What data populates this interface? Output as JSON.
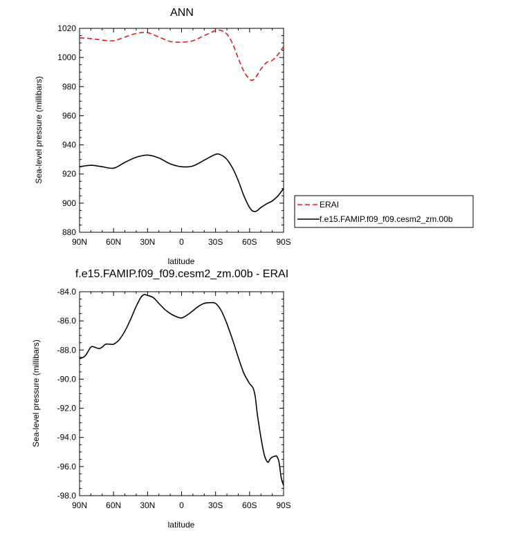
{
  "chart_data": [
    {
      "type": "line",
      "title": "ANN",
      "xlabel": "latitude",
      "ylabel": "Sea-level pressure (millibars)",
      "xlim": [
        90,
        -90
      ],
      "ylim": [
        880,
        1020
      ],
      "x_ticks": [
        90,
        60,
        30,
        0,
        -30,
        -60,
        -90
      ],
      "x_tick_labels": [
        "90N",
        "60N",
        "30N",
        "0",
        "30S",
        "60S",
        "90S"
      ],
      "y_ticks": [
        880,
        900,
        920,
        940,
        960,
        980,
        1000,
        1020
      ],
      "y_tick_labels": [
        "880",
        "900",
        "920",
        "940",
        "960",
        "980",
        "1000",
        "1020"
      ],
      "legend_position": "right",
      "series": [
        {
          "name": "ERAI",
          "color": "#e41a1c",
          "dash": "dashed",
          "x": [
            90,
            80,
            70,
            60,
            50,
            40,
            30,
            20,
            10,
            0,
            -10,
            -20,
            -30,
            -35,
            -40,
            -45,
            -50,
            -55,
            -60,
            -63,
            -66,
            -70,
            -75,
            -80,
            -85,
            -90
          ],
          "y": [
            1013.5,
            1013.0,
            1012.0,
            1011.5,
            1014.0,
            1016.5,
            1017.0,
            1014.0,
            1011.0,
            1010.5,
            1011.5,
            1015.0,
            1018.5,
            1018.5,
            1016.0,
            1009.5,
            999.5,
            990.5,
            985.0,
            984.5,
            987.0,
            992.0,
            996.5,
            998.0,
            1002.0,
            1007.5
          ]
        },
        {
          "name": "f.e15.FAMIP.f09_f09.cesm2_zm.00b",
          "color": "#000000",
          "dash": "solid",
          "x": [
            90,
            80,
            70,
            60,
            50,
            40,
            30,
            20,
            10,
            0,
            -10,
            -20,
            -30,
            -35,
            -40,
            -45,
            -50,
            -55,
            -60,
            -63,
            -66,
            -70,
            -75,
            -80,
            -85,
            -90
          ],
          "y": [
            925.0,
            926.0,
            925.0,
            924.0,
            928.0,
            931.5,
            933.0,
            931.0,
            927.0,
            925.0,
            925.5,
            929.5,
            933.5,
            933.0,
            930.0,
            924.0,
            915.5,
            905.0,
            897.0,
            894.5,
            894.5,
            897.0,
            899.5,
            901.5,
            905.0,
            910.0
          ]
        }
      ]
    },
    {
      "type": "line",
      "title": "f.e15.FAMIP.f09_f09.cesm2_zm.00b - ERAI",
      "xlabel": "latitude",
      "ylabel": "Sea-level pressure (millibars)",
      "xlim": [
        90,
        -90
      ],
      "ylim": [
        -98.0,
        -84.0
      ],
      "x_ticks": [
        90,
        60,
        30,
        0,
        -30,
        -60,
        -90
      ],
      "x_tick_labels": [
        "90N",
        "60N",
        "30N",
        "0",
        "30S",
        "60S",
        "90S"
      ],
      "y_ticks": [
        -84.0,
        -86.0,
        -88.0,
        -90.0,
        -92.0,
        -94.0,
        -96.0,
        -98.0
      ],
      "y_tick_labels": [
        "-84.0",
        "-86.0",
        "-88.0",
        "-90.0",
        "-92.0",
        "-94.0",
        "-96.0",
        "-98.0"
      ],
      "series": [
        {
          "name": "f.e15.FAMIP.f09_f09.cesm2_zm.00b - ERAI",
          "color": "#000000",
          "dash": "solid",
          "x": [
            90,
            85,
            80,
            77,
            73,
            70,
            67,
            63,
            60,
            55,
            50,
            45,
            40,
            36,
            33,
            30,
            25,
            20,
            15,
            10,
            5,
            0,
            -5,
            -10,
            -15,
            -20,
            -25,
            -30,
            -35,
            -40,
            -45,
            -50,
            -55,
            -60,
            -63,
            -65,
            -67,
            -70,
            -73,
            -76,
            -78,
            -80,
            -82,
            -84,
            -86,
            -88,
            -90
          ],
          "y": [
            -88.6,
            -88.4,
            -87.8,
            -87.8,
            -87.9,
            -87.8,
            -87.6,
            -87.6,
            -87.6,
            -87.3,
            -86.7,
            -85.9,
            -85.0,
            -84.4,
            -84.2,
            -84.25,
            -84.4,
            -84.8,
            -85.2,
            -85.5,
            -85.7,
            -85.8,
            -85.6,
            -85.3,
            -85.0,
            -84.8,
            -84.75,
            -84.8,
            -85.3,
            -86.2,
            -87.3,
            -88.5,
            -89.6,
            -90.3,
            -90.6,
            -91.2,
            -92.5,
            -94.0,
            -95.2,
            -95.7,
            -95.5,
            -95.35,
            -95.3,
            -95.3,
            -95.7,
            -96.8,
            -97.3
          ]
        }
      ]
    }
  ]
}
